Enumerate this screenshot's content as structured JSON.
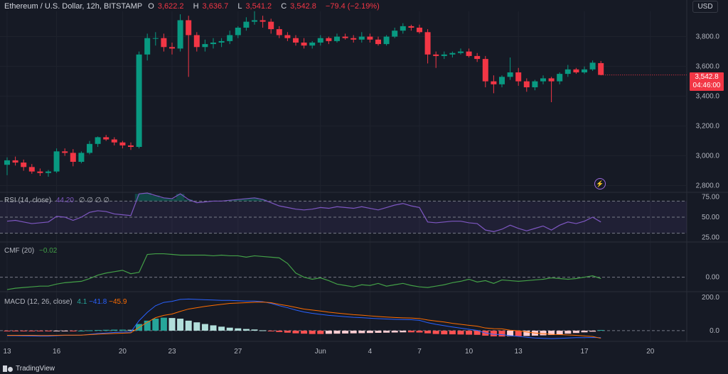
{
  "header": {
    "symbol": "Ethereum / U.S. Dollar, 12h, BITSTAMP",
    "o_label": "O",
    "o_value": "3,622.2",
    "h_label": "H",
    "h_value": "3,636.7",
    "l_label": "L",
    "l_value": "3,541.2",
    "c_label": "C",
    "c_value": "3,542.8",
    "change": "−79.4 (−2.19%)"
  },
  "currency_button": "USD",
  "price_box": {
    "price": "3,542.8",
    "countdown": "04:46:00"
  },
  "colors": {
    "up": "#089981",
    "down": "#f23645",
    "rsi": "#7e57c2",
    "cmf": "#43a047",
    "macd": "#2962ff",
    "signal": "#ff6d00"
  },
  "indicators": {
    "rsi": {
      "name": "RSI (14, close)",
      "value": "44.20",
      "symbols": "∅ ∅ ∅ ∅"
    },
    "cmf": {
      "name": "CMF (20)",
      "value": "−0.02"
    },
    "macd": {
      "name": "MACD (12, 26, close)",
      "hist": "4.1",
      "macd": "−41.8",
      "signal": "−45.9"
    }
  },
  "brand": "TradingView",
  "icons": [
    "flash-icon",
    "tradingview-logo-icon"
  ],
  "chart_data": [
    {
      "type": "candlestick",
      "title": "Ethereum / U.S. Dollar, 12h, BITSTAMP",
      "ylim": [
        2760,
        3960
      ],
      "y_ticks": [
        "3,800.0",
        "3,600.0",
        "3,400.0",
        "3,200.0",
        "3,000.0",
        "2,800.0"
      ],
      "x_ticks": [
        "13",
        "16",
        "20",
        "23",
        "27",
        "Jun",
        "4",
        "7",
        "10",
        "13",
        "17",
        "20"
      ],
      "ohlc": [
        [
          2940,
          2990,
          2870,
          2970
        ],
        [
          2970,
          2995,
          2935,
          2955
        ],
        [
          2955,
          2975,
          2900,
          2925
        ],
        [
          2925,
          2945,
          2880,
          2895
        ],
        [
          2895,
          2915,
          2865,
          2885
        ],
        [
          2885,
          2905,
          2860,
          2895
        ],
        [
          2895,
          3050,
          2885,
          3030
        ],
        [
          3030,
          3050,
          3000,
          3020
        ],
        [
          3020,
          3045,
          2930,
          2960
        ],
        [
          2960,
          3030,
          2950,
          3020
        ],
        [
          3020,
          3100,
          3010,
          3080
        ],
        [
          3080,
          3130,
          3060,
          3125
        ],
        [
          3125,
          3140,
          3100,
          3110
        ],
        [
          3110,
          3125,
          3070,
          3090
        ],
        [
          3090,
          3100,
          3050,
          3070
        ],
        [
          3070,
          3090,
          3040,
          3060
        ],
        [
          3060,
          3700,
          3050,
          3680
        ],
        [
          3680,
          3820,
          3640,
          3790
        ],
        [
          3790,
          3830,
          3740,
          3790
        ],
        [
          3790,
          3820,
          3700,
          3730
        ],
        [
          3730,
          3760,
          3680,
          3720
        ],
        [
          3720,
          3950,
          3700,
          3910
        ],
        [
          3910,
          3940,
          3530,
          3810
        ],
        [
          3810,
          3830,
          3700,
          3730
        ],
        [
          3730,
          3780,
          3700,
          3750
        ],
        [
          3750,
          3790,
          3720,
          3760
        ],
        [
          3760,
          3790,
          3730,
          3770
        ],
        [
          3770,
          3840,
          3750,
          3810
        ],
        [
          3810,
          3870,
          3790,
          3860
        ],
        [
          3860,
          3930,
          3840,
          3900
        ],
        [
          3900,
          3970,
          3880,
          3910
        ],
        [
          3910,
          3940,
          3860,
          3900
        ],
        [
          3900,
          3920,
          3820,
          3850
        ],
        [
          3850,
          3870,
          3790,
          3810
        ],
        [
          3810,
          3830,
          3770,
          3790
        ],
        [
          3790,
          3810,
          3740,
          3760
        ],
        [
          3760,
          3790,
          3720,
          3740
        ],
        [
          3740,
          3770,
          3720,
          3760
        ],
        [
          3760,
          3810,
          3740,
          3790
        ],
        [
          3790,
          3800,
          3750,
          3770
        ],
        [
          3770,
          3820,
          3760,
          3800
        ],
        [
          3800,
          3820,
          3780,
          3790
        ],
        [
          3790,
          3810,
          3760,
          3780
        ],
        [
          3780,
          3830,
          3760,
          3800
        ],
        [
          3800,
          3820,
          3760,
          3780
        ],
        [
          3780,
          3800,
          3740,
          3750
        ],
        [
          3750,
          3810,
          3740,
          3800
        ],
        [
          3800,
          3860,
          3790,
          3840
        ],
        [
          3840,
          3890,
          3820,
          3870
        ],
        [
          3870,
          3880,
          3840,
          3860
        ],
        [
          3860,
          3880,
          3820,
          3830
        ],
        [
          3830,
          3850,
          3620,
          3680
        ],
        [
          3680,
          3700,
          3590,
          3670
        ],
        [
          3670,
          3700,
          3650,
          3680
        ],
        [
          3680,
          3700,
          3660,
          3690
        ],
        [
          3690,
          3720,
          3680,
          3700
        ],
        [
          3700,
          3720,
          3660,
          3670
        ],
        [
          3670,
          3690,
          3630,
          3650
        ],
        [
          3650,
          3670,
          3460,
          3500
        ],
        [
          3500,
          3540,
          3420,
          3480
        ],
        [
          3480,
          3540,
          3460,
          3530
        ],
        [
          3530,
          3660,
          3510,
          3560
        ],
        [
          3560,
          3590,
          3470,
          3500
        ],
        [
          3500,
          3520,
          3430,
          3460
        ],
        [
          3460,
          3510,
          3440,
          3500
        ],
        [
          3500,
          3540,
          3480,
          3520
        ],
        [
          3520,
          3530,
          3360,
          3500
        ],
        [
          3500,
          3560,
          3480,
          3550
        ],
        [
          3550,
          3610,
          3530,
          3580
        ],
        [
          3580,
          3590,
          3550,
          3560
        ],
        [
          3560,
          3600,
          3550,
          3580
        ],
        [
          3580,
          3640,
          3570,
          3625
        ],
        [
          3622.2,
          3636.7,
          3541.2,
          3542.8
        ]
      ]
    },
    {
      "type": "line",
      "title": "RSI (14, close)",
      "ylim": [
        20,
        80
      ],
      "y_ticks": [
        "75.00",
        "50.00",
        "25.00"
      ],
      "bands": [
        70,
        50,
        30
      ],
      "values": [
        45,
        46,
        44,
        42,
        43,
        44,
        51,
        50,
        46,
        50,
        56,
        58,
        57,
        54,
        53,
        52,
        79,
        80,
        77,
        74,
        73,
        79,
        72,
        68,
        69,
        70,
        70,
        71,
        72,
        73,
        74,
        72,
        68,
        64,
        62,
        60,
        59,
        60,
        62,
        61,
        63,
        62,
        61,
        63,
        61,
        59,
        62,
        65,
        67,
        64,
        62,
        44,
        43,
        44,
        45,
        45,
        43,
        42,
        34,
        32,
        35,
        40,
        36,
        33,
        36,
        39,
        34,
        40,
        44,
        42,
        45,
        50,
        44
      ]
    },
    {
      "type": "line",
      "title": "CMF (20)",
      "ylim": [
        -0.2,
        0.5
      ],
      "y_ticks": [
        "0.00"
      ],
      "zero_line": 0,
      "values": [
        -0.18,
        -0.16,
        -0.15,
        -0.14,
        -0.13,
        -0.13,
        -0.1,
        -0.08,
        -0.07,
        -0.06,
        -0.02,
        0.03,
        0.06,
        0.08,
        0.1,
        0.05,
        0.07,
        0.33,
        0.34,
        0.34,
        0.33,
        0.32,
        0.32,
        0.32,
        0.32,
        0.31,
        0.32,
        0.31,
        0.31,
        0.29,
        0.31,
        0.3,
        0.29,
        0.28,
        0.2,
        0.06,
        0.0,
        -0.03,
        -0.01,
        -0.05,
        -0.1,
        -0.12,
        -0.14,
        -0.11,
        -0.12,
        -0.09,
        -0.13,
        -0.11,
        -0.09,
        -0.12,
        -0.14,
        -0.15,
        -0.13,
        -0.11,
        -0.08,
        -0.06,
        -0.03,
        -0.07,
        -0.05,
        -0.09,
        -0.04,
        -0.05,
        -0.06,
        -0.05,
        -0.04,
        -0.03,
        -0.01,
        -0.02,
        -0.03,
        -0.02,
        0.0,
        0.02,
        -0.02
      ]
    },
    {
      "type": "bar+line",
      "title": "MACD (12, 26, close)",
      "ylim": [
        -60,
        230
      ],
      "y_ticks": [
        "200.0",
        "0.0"
      ],
      "histogram": [
        -2,
        -2,
        -3,
        -4,
        -4,
        -4,
        -2,
        -1,
        -1,
        0,
        2,
        4,
        5,
        6,
        6,
        5,
        40,
        60,
        72,
        78,
        76,
        72,
        60,
        50,
        40,
        32,
        24,
        18,
        14,
        10,
        7,
        2,
        -4,
        -8,
        -12,
        -16,
        -18,
        -20,
        -20,
        -19,
        -18,
        -17,
        -16,
        -15,
        -14,
        -13,
        -12,
        -11,
        -10,
        -10,
        -11,
        -16,
        -20,
        -22,
        -22,
        -23,
        -24,
        -25,
        -30,
        -34,
        -35,
        -33,
        -33,
        -32,
        -30,
        -28,
        -26,
        -22,
        -18,
        -14,
        -10,
        -6,
        4.1
      ],
      "macd": [
        -30,
        -30,
        -31,
        -32,
        -33,
        -33,
        -30,
        -28,
        -28,
        -27,
        -22,
        -17,
        -14,
        -11,
        -9,
        -8,
        60,
        110,
        150,
        170,
        176,
        188,
        190,
        188,
        186,
        184,
        182,
        182,
        180,
        178,
        178,
        174,
        164,
        150,
        138,
        124,
        112,
        104,
        98,
        92,
        88,
        84,
        80,
        78,
        75,
        72,
        70,
        68,
        67,
        66,
        62,
        48,
        38,
        30,
        22,
        15,
        8,
        2,
        -14,
        -22,
        -24,
        -30,
        -34,
        -40,
        -44,
        -46,
        -48,
        -46,
        -44,
        -42,
        -42,
        -41,
        -41.8
      ],
      "signal": [
        -28,
        -28,
        -28,
        -28,
        -29,
        -29,
        -28,
        -27,
        -27,
        -27,
        -24,
        -21,
        -19,
        -17,
        -15,
        -13,
        20,
        50,
        78,
        92,
        100,
        116,
        130,
        138,
        146,
        152,
        158,
        164,
        166,
        168,
        171,
        172,
        168,
        158,
        150,
        140,
        130,
        124,
        118,
        111,
        106,
        101,
        96,
        93,
        89,
        85,
        82,
        79,
        77,
        76,
        73,
        64,
        58,
        52,
        44,
        38,
        32,
        27,
        16,
        12,
        11,
        3,
        -1,
        -8,
        -14,
        -18,
        -22,
        -24,
        -26,
        -28,
        -32,
        -35,
        -45.9
      ],
      "zero_line": 0
    }
  ]
}
